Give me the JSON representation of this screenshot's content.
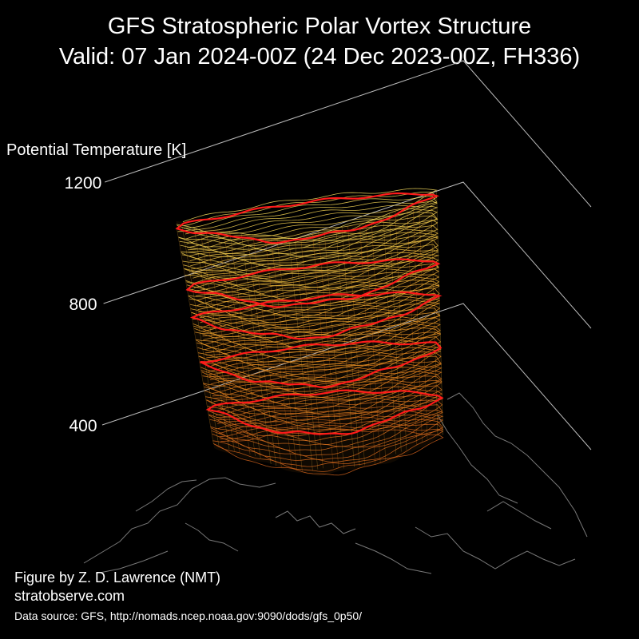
{
  "chart_data": {
    "type": "3d-isosurface",
    "title": "GFS Stratospheric Polar Vortex Structure",
    "subtitle": "Valid: 07 Jan 2024-00Z  (24 Dec 2023-00Z, FH336)",
    "zlabel": "Potential Temperature [K]",
    "z_ticks": [
      400,
      800,
      1200
    ],
    "zlim": [
      300,
      1200
    ],
    "highlight_levels": [
      450,
      600,
      750,
      850,
      1050
    ],
    "colormap": [
      "#c85a1a",
      "#e88a20",
      "#f0c040",
      "#f2ea70"
    ],
    "highlight_color": "#ff1a1a",
    "grid_color": "#bbbbbb",
    "coastline_color": "#777777"
  },
  "footer": {
    "credit": "Figure by Z. D. Lawrence (NMT)",
    "website": "stratobserve.com",
    "source": "Data source: GFS, http://nomads.ncep.noaa.gov:9090/dods/gfs_0p50/"
  }
}
